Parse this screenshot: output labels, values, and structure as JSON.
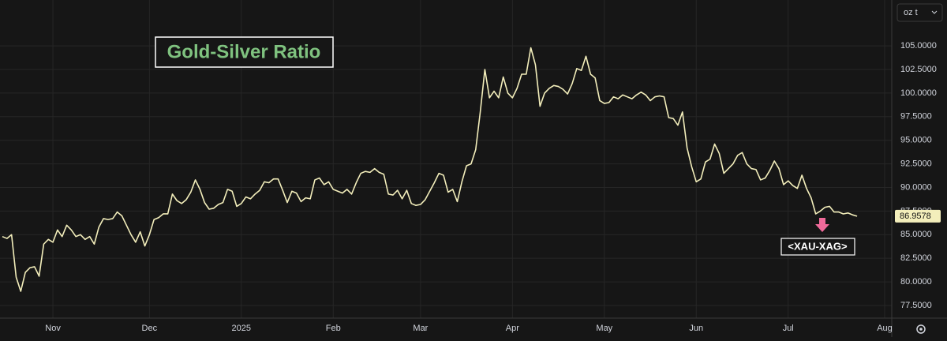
{
  "chart_data": {
    "type": "line",
    "title": "Gold-Silver Ratio",
    "unit_selector": "oz t",
    "symbol_label": "<XAU-XAG>",
    "categories": [
      null,
      null,
      null,
      null,
      null,
      null,
      null,
      null,
      null,
      null,
      null,
      "Nov",
      null,
      null,
      null,
      null,
      null,
      null,
      null,
      null,
      null,
      null,
      null,
      null,
      null,
      null,
      null,
      null,
      null,
      null,
      null,
      null,
      "Dec",
      null,
      null,
      null,
      null,
      null,
      null,
      null,
      null,
      null,
      null,
      null,
      null,
      null,
      null,
      null,
      null,
      null,
      null,
      null,
      "2025",
      null,
      null,
      null,
      null,
      null,
      null,
      null,
      null,
      null,
      null,
      null,
      null,
      null,
      null,
      null,
      null,
      null,
      null,
      null,
      "Feb",
      null,
      null,
      null,
      null,
      null,
      null,
      null,
      null,
      null,
      null,
      null,
      null,
      null,
      null,
      null,
      null,
      null,
      null,
      "Mar",
      null,
      null,
      null,
      null,
      null,
      null,
      null,
      null,
      null,
      null,
      null,
      null,
      null,
      null,
      null,
      null,
      null,
      null,
      null,
      "Apr",
      null,
      null,
      null,
      null,
      null,
      null,
      null,
      null,
      null,
      null,
      null,
      null,
      null,
      null,
      null,
      null,
      null,
      null,
      null,
      "May",
      null,
      null,
      null,
      null,
      null,
      null,
      null,
      null,
      null,
      null,
      null,
      null,
      null,
      null,
      null,
      null,
      null,
      null,
      null,
      "Jun",
      null,
      null,
      null,
      null,
      null,
      null,
      null,
      null,
      null,
      null,
      null,
      null,
      null,
      null,
      null,
      null,
      null,
      null,
      null,
      "Jul",
      null,
      null,
      null,
      null,
      null,
      null,
      null,
      null,
      null,
      null,
      null,
      null,
      null,
      null,
      null,
      null,
      null,
      null,
      null,
      null,
      "Aug"
    ],
    "series": [
      {
        "name": "XAU-XAG",
        "color": "#f3eebb",
        "values": [
          84.8,
          84.6,
          85.0,
          80.5,
          79.0,
          81.0,
          81.5,
          81.6,
          80.6,
          84.0,
          84.5,
          84.2,
          85.5,
          84.8,
          86.0,
          85.5,
          84.8,
          85.0,
          84.5,
          84.8,
          84.0,
          85.8,
          86.7,
          86.6,
          86.7,
          87.4,
          87.0,
          86.0,
          85.0,
          84.2,
          85.3,
          83.8,
          85.0,
          86.6,
          86.8,
          87.2,
          87.2,
          89.3,
          88.6,
          88.3,
          88.7,
          89.5,
          90.8,
          89.8,
          88.4,
          87.7,
          87.8,
          88.2,
          88.4,
          89.8,
          89.6,
          88.0,
          88.3,
          89.0,
          88.8,
          89.3,
          89.7,
          90.6,
          90.5,
          90.9,
          90.9,
          89.7,
          88.4,
          89.6,
          89.4,
          88.5,
          88.9,
          88.8,
          90.8,
          91.0,
          90.3,
          90.6,
          89.8,
          89.6,
          89.4,
          89.8,
          89.3,
          90.5,
          91.5,
          91.7,
          91.6,
          92.0,
          91.6,
          91.4,
          89.3,
          89.2,
          89.7,
          88.8,
          89.7,
          88.3,
          88.1,
          88.2,
          88.7,
          89.6,
          90.5,
          91.5,
          91.3,
          89.5,
          89.8,
          88.5,
          90.6,
          92.3,
          92.5,
          94.0,
          98.0,
          102.5,
          99.5,
          100.2,
          99.5,
          101.7,
          100.0,
          99.5,
          100.5,
          102.0,
          102.0,
          104.8,
          103.0,
          98.6,
          100.0,
          100.5,
          100.8,
          100.7,
          100.4,
          99.9,
          101.0,
          102.6,
          102.4,
          103.9,
          102.0,
          101.6,
          99.2,
          98.9,
          99.0,
          99.6,
          99.4,
          99.8,
          99.6,
          99.4,
          99.8,
          100.1,
          99.8,
          99.2,
          99.6,
          99.7,
          99.6,
          97.4,
          97.3,
          96.6,
          98.0,
          94.2,
          92.2,
          90.6,
          90.9,
          92.7,
          93.0,
          94.6,
          93.6,
          91.5,
          92.0,
          92.5,
          93.4,
          93.7,
          92.5,
          92.0,
          91.9,
          90.8,
          91.0,
          91.8,
          92.8,
          92.0,
          90.3,
          90.7,
          90.2,
          89.9,
          91.3,
          89.9,
          88.9,
          87.2,
          87.5,
          87.9,
          88.0,
          87.4,
          87.4,
          87.2,
          87.3,
          87.1,
          86.9578,
          null,
          null,
          null,
          null,
          null,
          null
        ]
      }
    ],
    "ylim": [
      76.16,
      109.86
    ],
    "yticks": [
      {
        "value": 77.5,
        "label": "77.5000"
      },
      {
        "value": 80,
        "label": "80.0000"
      },
      {
        "value": 82.5,
        "label": "82.5000"
      },
      {
        "value": 85,
        "label": "85.0000"
      },
      {
        "value": 87.5,
        "label": "87.5000"
      },
      {
        "value": 90,
        "label": "90.0000"
      },
      {
        "value": 92.5,
        "label": "92.5000"
      },
      {
        "value": 95,
        "label": "95.0000"
      },
      {
        "value": 97.5,
        "label": "97.5000"
      },
      {
        "value": 100,
        "label": "100.0000"
      },
      {
        "value": 102.5,
        "label": "102.5000"
      },
      {
        "value": 105,
        "label": "105.0000"
      }
    ],
    "grid": true,
    "axis_side": "right"
  }
}
